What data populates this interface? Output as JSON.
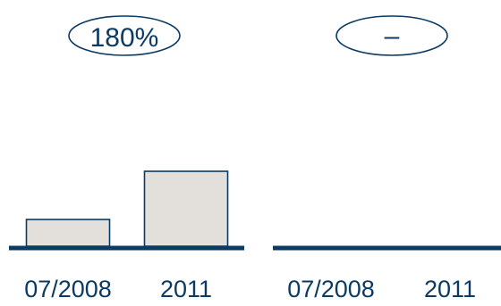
{
  "colors": {
    "axis": "#0b3a63",
    "bar_fill": "#e3e0dc",
    "bar_stroke": "#0b3a63",
    "text": "#0b3a63"
  },
  "chart_data": [
    {
      "type": "bar",
      "badge": "180%",
      "categories": [
        "07/2008",
        "2011"
      ],
      "values": [
        10,
        28
      ],
      "ylim": [
        0,
        40
      ],
      "grid": false
    },
    {
      "type": "bar",
      "badge": "–",
      "categories": [
        "07/2008",
        "2011"
      ],
      "values": [
        0,
        0
      ],
      "ylim": [
        0,
        40
      ],
      "grid": false
    }
  ]
}
